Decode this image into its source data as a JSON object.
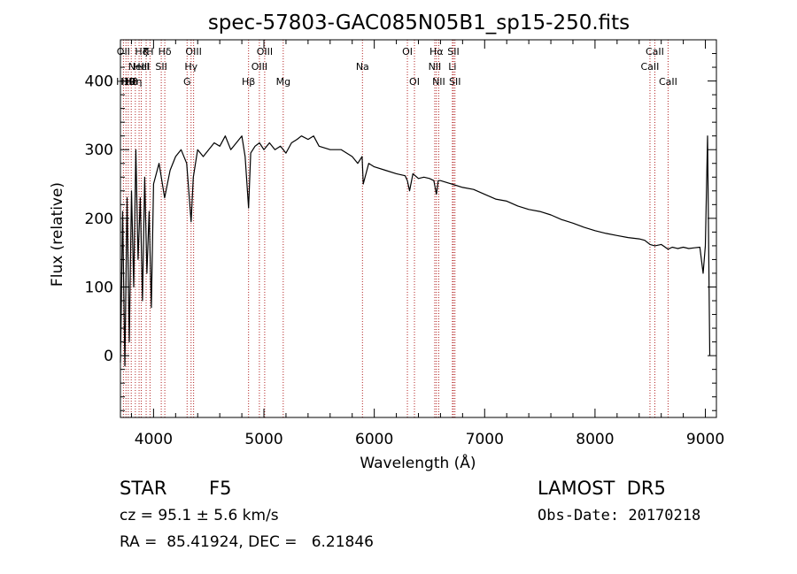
{
  "chart_data": {
    "type": "line",
    "title": "spec-57803-GAC085N05B1_sp15-250.fits",
    "xlabel": "Wavelength (Å)",
    "ylabel": "Flux (relative)",
    "xlim": [
      3700,
      9100
    ],
    "ylim": [
      -90,
      460
    ],
    "x_ticks": [
      4000,
      5000,
      6000,
      7000,
      8000,
      9000
    ],
    "y_ticks": [
      0,
      100,
      200,
      300,
      400
    ],
    "grid": false,
    "line_color": "#000000",
    "marker_color": "#b22222",
    "series": [
      {
        "x": [
          3700,
          3720,
          3740,
          3760,
          3780,
          3800,
          3820,
          3840,
          3860,
          3880,
          3900,
          3920,
          3940,
          3960,
          3980,
          4000,
          4050,
          4100,
          4150,
          4200,
          4250,
          4300,
          4340,
          4360,
          4400,
          4450,
          4500,
          4550,
          4600,
          4650,
          4700,
          4750,
          4800,
          4830,
          4861,
          4880,
          4920,
          4960,
          5000,
          5050,
          5100,
          5150,
          5200,
          5250,
          5300,
          5340,
          5400,
          5450,
          5500,
          5600,
          5700,
          5800,
          5850,
          5890,
          5900,
          5950,
          6000,
          6100,
          6200,
          6280,
          6300,
          6320,
          6350,
          6400,
          6450,
          6500,
          6540,
          6563,
          6580,
          6600,
          6700,
          6800,
          6900,
          7000,
          7100,
          7200,
          7300,
          7400,
          7500,
          7600,
          7700,
          7800,
          7900,
          8000,
          8100,
          8200,
          8300,
          8400,
          8450,
          8498,
          8542,
          8600,
          8662,
          8700,
          8750,
          8800,
          8850,
          8900,
          8950,
          8980,
          9000,
          9020,
          9040
        ],
        "y": [
          -10,
          210,
          -15,
          230,
          20,
          240,
          100,
          300,
          140,
          230,
          80,
          260,
          120,
          210,
          70,
          250,
          280,
          230,
          270,
          290,
          300,
          280,
          195,
          260,
          300,
          290,
          300,
          310,
          305,
          320,
          300,
          310,
          320,
          290,
          215,
          295,
          305,
          310,
          300,
          310,
          300,
          305,
          295,
          310,
          315,
          320,
          315,
          320,
          305,
          300,
          300,
          290,
          280,
          290,
          250,
          280,
          275,
          270,
          265,
          262,
          255,
          240,
          265,
          258,
          260,
          258,
          255,
          235,
          255,
          255,
          250,
          245,
          242,
          235,
          228,
          225,
          218,
          213,
          210,
          205,
          198,
          193,
          187,
          182,
          178,
          175,
          172,
          170,
          168,
          162,
          160,
          162,
          155,
          158,
          156,
          158,
          156,
          157,
          158,
          120,
          160,
          320,
          0
        ]
      }
    ],
    "line_markers": [
      {
        "x": 3727,
        "labels": [
          "OII"
        ]
      },
      {
        "x": 3750,
        "labels": [
          "",
          "",
          "H10"
        ]
      },
      {
        "x": 3771,
        "labels": [
          "",
          "",
          "H9"
        ]
      },
      {
        "x": 3798,
        "labels": [
          "",
          "",
          "H8"
        ]
      },
      {
        "x": 3835,
        "labels": [
          "",
          "",
          "Hη"
        ]
      },
      {
        "x": 3869,
        "labels": [
          "",
          "NeIII"
        ]
      },
      {
        "x": 3889,
        "labels": [
          "Hζ",
          "HeI"
        ]
      },
      {
        "x": 3933,
        "labels": [
          "K"
        ]
      },
      {
        "x": 3968,
        "labels": [
          "H"
        ]
      },
      {
        "x": 4070,
        "labels": [
          "",
          "SII"
        ]
      },
      {
        "x": 4102,
        "labels": [
          "Hδ"
        ]
      },
      {
        "x": 4304,
        "labels": [
          "",
          "",
          "G"
        ]
      },
      {
        "x": 4340,
        "labels": [
          "",
          "Hγ"
        ]
      },
      {
        "x": 4363,
        "labels": [
          "OIII"
        ]
      },
      {
        "x": 4861,
        "labels": [
          "",
          "",
          "Hβ"
        ]
      },
      {
        "x": 4959,
        "labels": [
          "",
          "OIII"
        ]
      },
      {
        "x": 5007,
        "labels": [
          "OIII"
        ]
      },
      {
        "x": 5175,
        "labels": [
          "",
          "",
          "Mg"
        ]
      },
      {
        "x": 5893,
        "labels": [
          "",
          "Na"
        ]
      },
      {
        "x": 6300,
        "labels": [
          "OI"
        ]
      },
      {
        "x": 6364,
        "labels": [
          "",
          "",
          "OI"
        ]
      },
      {
        "x": 6548,
        "labels": [
          "",
          "NII"
        ]
      },
      {
        "x": 6563,
        "labels": [
          "Hα"
        ]
      },
      {
        "x": 6584,
        "labels": [
          "",
          "",
          "NII"
        ]
      },
      {
        "x": 6708,
        "labels": [
          "",
          "Li"
        ]
      },
      {
        "x": 6717,
        "labels": [
          "SII"
        ]
      },
      {
        "x": 6731,
        "labels": [
          "",
          "",
          "SII"
        ]
      },
      {
        "x": 8498,
        "labels": [
          "",
          "CaII"
        ]
      },
      {
        "x": 8542,
        "labels": [
          "CaII"
        ]
      },
      {
        "x": 8662,
        "labels": [
          "",
          "",
          "CaII"
        ]
      }
    ]
  },
  "info": {
    "class_label": "STAR",
    "subclass_label": "F5",
    "survey_label": "LAMOST  DR5",
    "redshift_text": "cz = 95.1 ± 5.6 km/s",
    "obs_date_text": "Obs-Date: 20170218",
    "coords_text": "RA =  85.41924, DEC =   6.21846"
  }
}
